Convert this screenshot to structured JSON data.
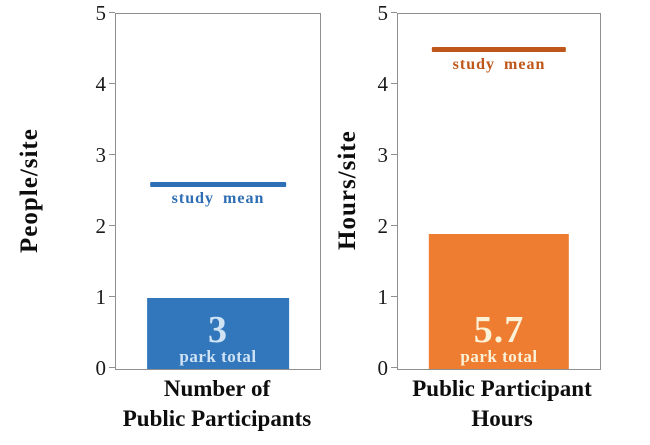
{
  "background_color": "#FFFFFF",
  "axis_color": "#8F8F8F",
  "chart_data": [
    {
      "type": "bar",
      "title": "",
      "xlabel_lines": [
        "Number of",
        "Public Participants"
      ],
      "ylabel": "People/site",
      "ylim": [
        0,
        5
      ],
      "yticks": [
        0,
        1,
        2,
        3,
        4,
        5
      ],
      "grid": false,
      "bar": {
        "value": 1.0,
        "total_label": "3",
        "total_caption": "park total",
        "color": "#3277BC",
        "text_color": "#CFE3F5"
      },
      "mean": {
        "value": 2.6,
        "label": "study mean",
        "color": "#2E6FB5",
        "label_color": "#2E6DB4"
      }
    },
    {
      "type": "bar",
      "title": "",
      "xlabel_lines": [
        "Public Participant",
        "Hours"
      ],
      "ylabel": "Hours/site",
      "ylim": [
        0,
        5
      ],
      "yticks": [
        0,
        1,
        2,
        3,
        4,
        5
      ],
      "grid": false,
      "bar": {
        "value": 1.9,
        "total_label": "5.7",
        "total_caption": "park total",
        "color": "#EE7D31",
        "text_color": "#FBF2D8"
      },
      "mean": {
        "value": 4.5,
        "label": "study mean",
        "color": "#C0571A",
        "label_color": "#C0571A"
      }
    }
  ]
}
